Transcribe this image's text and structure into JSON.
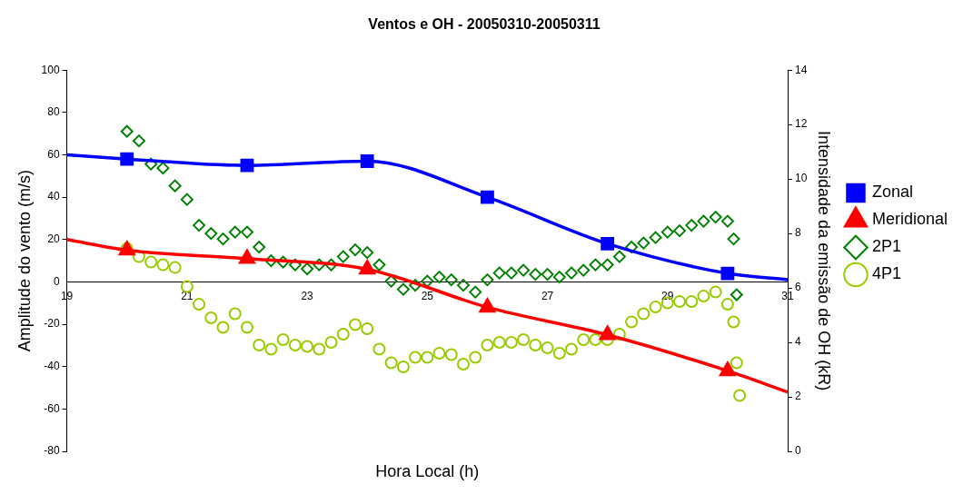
{
  "chart_data": {
    "type": "line",
    "title": "Ventos e OH - 20050310-20050311",
    "xlabel": "Hora Local (h)",
    "ylabel": "Amplitude do vento (m/s)",
    "y2label": "Intensidade da emissão de OH (kR)",
    "xlim": [
      19,
      31
    ],
    "xticks": [
      19,
      21,
      23,
      25,
      27,
      29,
      31
    ],
    "ylim": [
      -80,
      100
    ],
    "yticks": [
      -80,
      -60,
      -40,
      -20,
      0,
      20,
      40,
      60,
      80,
      100
    ],
    "y2lim": [
      0,
      14
    ],
    "y2ticks": [
      0,
      2,
      4,
      6,
      8,
      10,
      12,
      14
    ],
    "legend": "right",
    "grid": false,
    "series": [
      {
        "name": "Zonal",
        "marker": "square",
        "color": "#0000ff",
        "x": [
          19,
          20,
          22,
          24,
          26,
          28,
          30,
          31
        ],
        "values": [
          60,
          58,
          55,
          57,
          40,
          18,
          4,
          1
        ]
      },
      {
        "name": "Meridional",
        "marker": "triangle",
        "color": "#ff0000",
        "x": [
          19,
          20,
          22,
          24,
          26,
          28,
          30,
          31
        ],
        "values": [
          20,
          15,
          11,
          6,
          -12,
          -25,
          -42,
          -52
        ]
      },
      {
        "name": "2P1",
        "type": "scatter",
        "marker": "diamond",
        "axis": "y2",
        "color": "#008000",
        "x": [
          20,
          20.2,
          20.4,
          20.6,
          20.8,
          21,
          21.2,
          21.4,
          21.6,
          21.8,
          22,
          22.2,
          22.4,
          22.6,
          22.8,
          23,
          23.2,
          23.4,
          23.6,
          23.8,
          24,
          24.2,
          24.4,
          24.6,
          24.8,
          25,
          25.2,
          25.4,
          25.6,
          25.8,
          26,
          26.2,
          26.4,
          26.6,
          26.8,
          27,
          27.2,
          27.4,
          27.6,
          27.8,
          28,
          28.2,
          28.4,
          28.6,
          28.8,
          29,
          29.2,
          29.4,
          29.6,
          29.8,
          30,
          30.1,
          30.15
        ],
        "values": [
          11.75,
          11.4,
          10.55,
          10.4,
          9.75,
          9.25,
          8.3,
          8,
          7.8,
          8.05,
          8.05,
          7.5,
          7,
          6.95,
          6.85,
          6.7,
          6.85,
          6.85,
          7.15,
          7.4,
          7.3,
          6.85,
          6.25,
          5.95,
          6.1,
          6.25,
          6.4,
          6.3,
          6.1,
          5.85,
          6.3,
          6.55,
          6.55,
          6.65,
          6.5,
          6.5,
          6.4,
          6.55,
          6.65,
          6.85,
          6.85,
          7.15,
          7.5,
          7.65,
          7.85,
          8.05,
          8.1,
          8.3,
          8.45,
          8.6,
          8.45,
          7.8,
          5.75
        ]
      },
      {
        "name": "4P1",
        "type": "scatter",
        "marker": "circle",
        "axis": "y2",
        "color": "#99cc00",
        "x": [
          20,
          20.2,
          20.4,
          20.6,
          20.8,
          21,
          21.2,
          21.4,
          21.6,
          21.8,
          22,
          22.2,
          22.4,
          22.6,
          22.8,
          23,
          23.2,
          23.4,
          23.6,
          23.8,
          24,
          24.2,
          24.4,
          24.6,
          24.8,
          25,
          25.2,
          25.4,
          25.6,
          25.8,
          26,
          26.2,
          26.4,
          26.6,
          26.8,
          27,
          27.2,
          27.4,
          27.6,
          27.8,
          28,
          28.2,
          28.4,
          28.6,
          28.8,
          29,
          29.2,
          29.4,
          29.6,
          29.8,
          30,
          30.1,
          30.15,
          30.2
        ],
        "values": [
          7.45,
          7.15,
          6.95,
          6.85,
          6.75,
          6.05,
          5.4,
          4.9,
          4.55,
          5.05,
          4.55,
          3.9,
          3.75,
          4.1,
          3.9,
          3.85,
          3.75,
          4,
          4.3,
          4.65,
          4.5,
          3.75,
          3.25,
          3.1,
          3.45,
          3.45,
          3.6,
          3.55,
          3.2,
          3.45,
          3.9,
          4,
          4,
          4.1,
          3.9,
          3.8,
          3.6,
          3.75,
          4.1,
          4.1,
          4.1,
          4.3,
          4.75,
          5.05,
          5.3,
          5.45,
          5.5,
          5.5,
          5.7,
          5.85,
          5.4,
          4.75,
          3.25,
          2.05
        ]
      }
    ]
  }
}
